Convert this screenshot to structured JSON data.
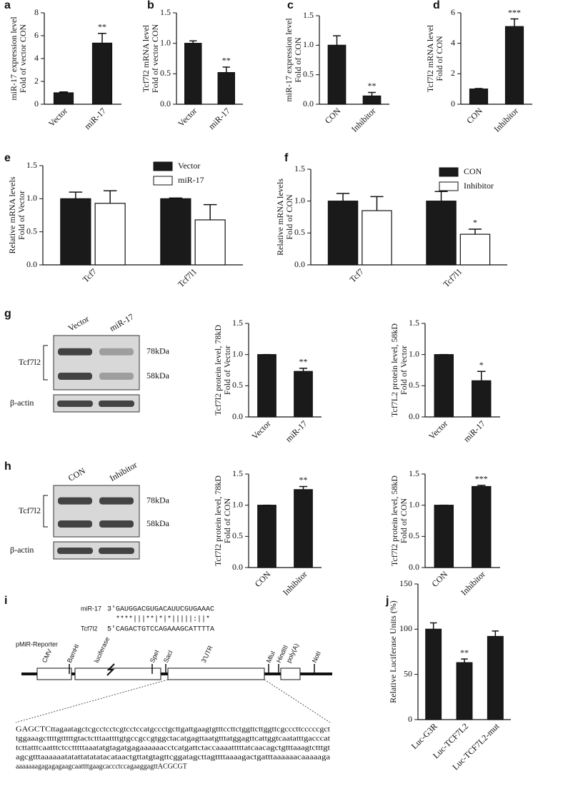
{
  "panel_labels": [
    "a",
    "b",
    "c",
    "d",
    "e",
    "f",
    "g",
    "h",
    "i",
    "j"
  ],
  "chart_data": [
    {
      "type": "bar",
      "ylabel": [
        "miR-17 expression level",
        "Fold of vector CON"
      ],
      "categories": [
        "Vector",
        "miR-17"
      ],
      "values": [
        1.0,
        5.35
      ],
      "errors": [
        0.08,
        0.85
      ],
      "significance": [
        null,
        "**"
      ],
      "color": "#1a1a1a",
      "ylim": [
        0,
        8
      ],
      "yticks": [
        0,
        2,
        4,
        6,
        8
      ]
    },
    {
      "type": "bar",
      "ylabel": [
        "Tcf7l2 mRNA level",
        "Fold of  vector CON"
      ],
      "categories": [
        "Vector",
        "miR-17"
      ],
      "values": [
        1.0,
        0.52
      ],
      "errors": [
        0.04,
        0.09
      ],
      "significance": [
        null,
        "**"
      ],
      "color": "#1a1a1a",
      "ylim": [
        0,
        1.5
      ],
      "yticks": [
        {
          "value": 0,
          "label": "0.0"
        },
        0.5,
        {
          "value": 1,
          "label": "1.0"
        },
        1.5
      ]
    },
    {
      "type": "bar",
      "ylabel": [
        "miR-17 expression level",
        "Fold of CON"
      ],
      "categories": [
        "CON",
        "Inhibitor"
      ],
      "values": [
        1.0,
        0.14
      ],
      "errors": [
        0.16,
        0.06
      ],
      "significance": [
        null,
        "**"
      ],
      "color": "#1a1a1a",
      "ylim": [
        0,
        1.5
      ],
      "yticks": [
        {
          "value": 0,
          "label": "0.0"
        },
        0.5,
        {
          "value": 1,
          "label": "1.0"
        },
        1.5
      ]
    },
    {
      "type": "bar",
      "ylabel": [
        "Tcf7l2 mRNA level",
        "Fold of CON"
      ],
      "categories": [
        "CON",
        "Inhibitor"
      ],
      "values": [
        1.0,
        5.1
      ],
      "errors": [
        0.03,
        0.5
      ],
      "significance": [
        null,
        "***"
      ],
      "color": "#1a1a1a",
      "ylim": [
        0,
        6
      ],
      "yticks": [
        0,
        2,
        4,
        6
      ]
    },
    {
      "type": "bar",
      "ylabel": [
        "Relative mRNA levels",
        "Fold of Vector"
      ],
      "categories": [
        "Tcf7",
        "Tcf7l1"
      ],
      "series": [
        {
          "name": "Vector",
          "color": "#1a1a1a",
          "values": [
            1.0,
            1.0
          ],
          "errors": [
            0.1,
            0.01
          ]
        },
        {
          "name": "miR-17",
          "color": "#ffffff",
          "values": [
            0.93,
            0.68
          ],
          "errors": [
            0.19,
            0.23
          ]
        }
      ],
      "ylim": [
        0,
        1.5
      ],
      "yticks": [
        {
          "value": 0,
          "label": "0.0"
        },
        0.5,
        {
          "value": 1,
          "label": "1.0"
        },
        1.5
      ]
    },
    {
      "type": "bar",
      "ylabel": [
        "Relative mRNA levels",
        "Fold of CON"
      ],
      "categories": [
        "Tcf7",
        "Tcf7l1"
      ],
      "series": [
        {
          "name": "CON",
          "color": "#1a1a1a",
          "values": [
            1.0,
            1.0
          ],
          "errors": [
            0.12,
            0.15
          ]
        },
        {
          "name": "Inhibitor",
          "color": "#ffffff",
          "values": [
            0.85,
            0.48
          ],
          "errors": [
            0.22,
            0.08
          ],
          "significance": [
            null,
            "*"
          ]
        }
      ],
      "ylim": [
        0,
        1.5
      ],
      "yticks": [
        {
          "value": 0,
          "label": "0.0"
        },
        0.5,
        {
          "value": 1,
          "label": "1.0"
        },
        1.5
      ]
    },
    {
      "type": "bar",
      "ylabel": [
        "Tcf7l2 protein  level, 78kD",
        "Fold of Vector"
      ],
      "categories": [
        "Vector",
        "miR-17"
      ],
      "values": [
        1.0,
        0.73
      ],
      "errors": [
        0.0,
        0.05
      ],
      "significance": [
        null,
        "**"
      ],
      "color": "#1a1a1a",
      "ylim": [
        0,
        1.5
      ],
      "yticks": [
        {
          "value": 0,
          "label": "0.0"
        },
        0.5,
        {
          "value": 1,
          "label": "1.0"
        },
        1.5
      ]
    },
    {
      "type": "bar",
      "ylabel": [
        "Tcf7L2 protein  level, 58kD",
        "Fold of Vector"
      ],
      "categories": [
        "Vector",
        "miR-17"
      ],
      "values": [
        1.0,
        0.58
      ],
      "errors": [
        0.0,
        0.15
      ],
      "significance": [
        null,
        "*"
      ],
      "color": "#1a1a1a",
      "ylim": [
        0,
        1.5
      ],
      "yticks": [
        {
          "value": 0,
          "label": "0.0"
        },
        0.5,
        {
          "value": 1,
          "label": "1.0"
        },
        1.5
      ]
    },
    {
      "type": "bar",
      "ylabel": [
        "Tcf7l2 protein level, 78kD",
        "Fold of CON"
      ],
      "categories": [
        "CON",
        "Inhibitor"
      ],
      "values": [
        1.0,
        1.25
      ],
      "errors": [
        0.0,
        0.05
      ],
      "significance": [
        null,
        "**"
      ],
      "color": "#1a1a1a",
      "ylim": [
        0,
        1.5
      ],
      "yticks": [
        {
          "value": 0,
          "label": "0.0"
        },
        0.5,
        {
          "value": 1,
          "label": "1.0"
        },
        1.5
      ]
    },
    {
      "type": "bar",
      "ylabel": [
        "Tcf7l2 protein level, 58kD",
        "Fold of CON"
      ],
      "categories": [
        "CON",
        "Inhibitor"
      ],
      "values": [
        1.0,
        1.3
      ],
      "errors": [
        0.0,
        0.02
      ],
      "significance": [
        null,
        "***"
      ],
      "color": "#1a1a1a",
      "ylim": [
        0,
        1.5
      ],
      "yticks": [
        {
          "value": 0,
          "label": "0.0"
        },
        0.5,
        {
          "value": 1,
          "label": "1.0"
        },
        1.5
      ]
    },
    {
      "type": "bar",
      "ylabel": [
        "Relative Luciferase Units (%)"
      ],
      "categories": [
        "Luc-G3R",
        "Luc-TCF7L2",
        "Luc-TCF7L2-mut"
      ],
      "values": [
        100,
        63,
        92
      ],
      "errors": [
        7,
        4,
        6
      ],
      "significance": [
        null,
        "**",
        null
      ],
      "color": "#1a1a1a",
      "ylim": [
        0,
        150
      ],
      "yticks": [
        0,
        50,
        100,
        150
      ]
    }
  ],
  "blots": [
    {
      "lanes": [
        "Vector",
        "miR-17"
      ],
      "protein": "Tcf7l2",
      "sizes": [
        "78kDa",
        "58kDa"
      ],
      "control": "β-actin"
    },
    {
      "lanes": [
        "CON",
        "Inhibitor"
      ],
      "protein": "Tcf7l2",
      "sizes": [
        "78kDa",
        "58kDa"
      ],
      "control": "β-actin"
    }
  ],
  "diagram": {
    "mirna_name": "miR-17",
    "mirna_seq": "3'GAUGGACGUGACAUUCGUGAAAC",
    "pairing": "****|||**|*|*|||||:||*",
    "target_name": "Tcf7l2",
    "target_seq": "5'CAGACTGTCCAGAAAGCATTTTA",
    "vector": "pMiR-Reporter",
    "features": [
      "CMV",
      "BamHI",
      "luciferase",
      "SpeI",
      "SacI",
      "3'UTR",
      "MluI",
      "HindIII",
      "poly(A)",
      "NotI"
    ],
    "sequence": [
      "GAGCTCttagaatagctcgcctcctcgtcctccatgccctgcttgattgaagtgtttccttctggttcttggttcgcccttcccccgct",
      "tggaaagcttttgtttttgtactctttaattttgtgccgccgtggctacatgagttaatgtttatggagttcattggtcaatatttgacccat",
      "tcttatttcaatttctcctttttaaatatgtagatgagaaaaaacctcatgattctaccaaaatttttatcaacagctgtttaaagtctttgt",
      "agcgtttaaaaaatatattatatatacataactgttatgtagttcggatagcttagttttaaaagactgatttaaaaaacaaaaaga",
      "aaaaaaagagagagaagcaattttgaagcaccctccagaaggagttACGCGT"
    ]
  }
}
